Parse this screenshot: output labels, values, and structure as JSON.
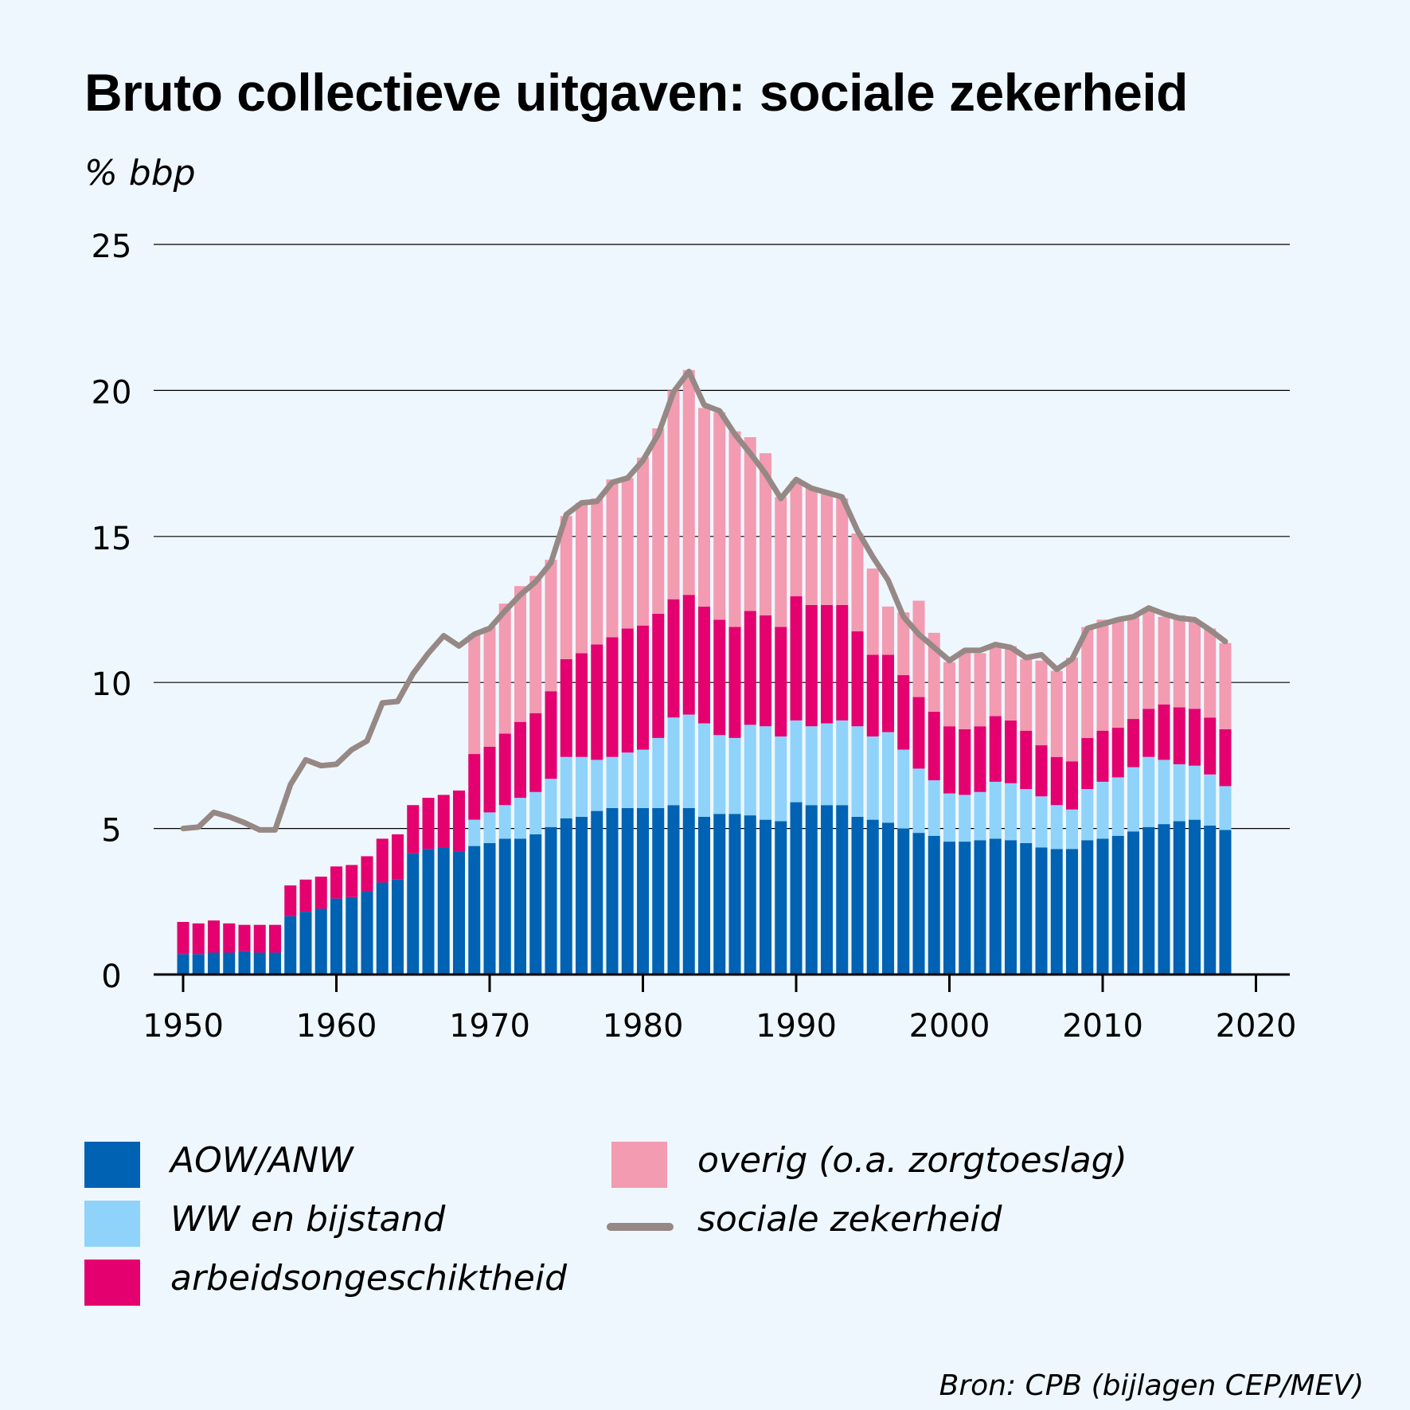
{
  "title": "Bruto collectieve uitgaven: sociale zekerheid",
  "unit_label": "% bbp",
  "source": "Bron: CPB (bijlagen CEP/MEV)",
  "colors": {
    "aow": "#0062b3",
    "ww": "#8fd3fa",
    "ao": "#e4006f",
    "overig": "#f29bb1",
    "line": "#968884",
    "grid": "#000000",
    "background": "#eef7fd"
  },
  "legend": [
    {
      "key": "aow",
      "label": "AOW/ANW",
      "kind": "box"
    },
    {
      "key": "ww",
      "label": "WW en bijstand",
      "kind": "box"
    },
    {
      "key": "ao",
      "label": "arbeidsongeschiktheid",
      "kind": "box"
    },
    {
      "key": "overig",
      "label": "overig (o.a. zorgtoeslag)",
      "kind": "box"
    },
    {
      "key": "line",
      "label": "sociale zekerheid",
      "kind": "line"
    }
  ],
  "chart_data": {
    "type": "bar",
    "stacked": true,
    "title": "Bruto collectieve uitgaven: sociale zekerheid",
    "ylabel": "% bbp",
    "xlabel": "",
    "ylim": [
      0,
      25
    ],
    "yticks": [
      "0",
      "5",
      "10",
      "15",
      "20",
      "25"
    ],
    "xticks": [
      "1950",
      "1960",
      "1970",
      "1980",
      "1990",
      "2000",
      "2010",
      "2020"
    ],
    "xlim": [
      1950,
      2020
    ],
    "grid": true,
    "x": [
      1950,
      1951,
      1952,
      1953,
      1954,
      1955,
      1956,
      1957,
      1958,
      1959,
      1960,
      1961,
      1962,
      1963,
      1964,
      1965,
      1966,
      1967,
      1968,
      1969,
      1970,
      1971,
      1972,
      1973,
      1974,
      1975,
      1976,
      1977,
      1978,
      1979,
      1980,
      1981,
      1982,
      1983,
      1984,
      1985,
      1986,
      1987,
      1988,
      1989,
      1990,
      1991,
      1992,
      1993,
      1994,
      1995,
      1996,
      1997,
      1998,
      1999,
      2000,
      2001,
      2002,
      2003,
      2004,
      2005,
      2006,
      2007,
      2008,
      2009,
      2010,
      2011,
      2012,
      2013,
      2014,
      2015,
      2016,
      2017,
      2018
    ],
    "series": [
      {
        "name": "AOW/ANW",
        "key": "aow",
        "values": [
          0.7,
          0.7,
          0.75,
          0.75,
          0.8,
          0.75,
          0.75,
          2.0,
          2.15,
          2.25,
          2.6,
          2.65,
          2.85,
          3.15,
          3.25,
          4.15,
          4.3,
          4.35,
          4.2,
          4.4,
          4.5,
          4.65,
          4.65,
          4.8,
          5.05,
          5.35,
          5.4,
          5.6,
          5.7,
          5.7,
          5.7,
          5.7,
          5.8,
          5.7,
          5.4,
          5.5,
          5.5,
          5.45,
          5.3,
          5.25,
          5.9,
          5.8,
          5.8,
          5.8,
          5.4,
          5.3,
          5.2,
          5.0,
          4.85,
          4.75,
          4.55,
          4.55,
          4.6,
          4.65,
          4.6,
          4.5,
          4.35,
          4.3,
          4.3,
          4.6,
          4.65,
          4.75,
          4.9,
          5.05,
          5.15,
          5.25,
          5.3,
          5.1,
          4.95
        ]
      },
      {
        "name": "WW en bijstand",
        "key": "ww",
        "values": [
          0,
          0,
          0,
          0,
          0,
          0,
          0,
          0,
          0,
          0,
          0,
          0,
          0,
          0,
          0,
          0,
          0,
          0,
          0,
          0.9,
          1.05,
          1.15,
          1.4,
          1.45,
          1.65,
          2.1,
          2.05,
          1.75,
          1.75,
          1.9,
          2.0,
          2.4,
          3.0,
          3.2,
          3.2,
          2.7,
          2.6,
          3.1,
          3.2,
          2.9,
          2.8,
          2.7,
          2.8,
          2.9,
          3.1,
          2.85,
          3.1,
          2.7,
          2.2,
          1.9,
          1.65,
          1.6,
          1.65,
          1.95,
          1.95,
          1.85,
          1.75,
          1.5,
          1.35,
          1.75,
          1.95,
          2.0,
          2.2,
          2.4,
          2.2,
          1.95,
          1.85,
          1.75,
          1.5
        ]
      },
      {
        "name": "arbeidsongeschiktheid",
        "key": "ao",
        "values": [
          1.1,
          1.05,
          1.1,
          1.0,
          0.9,
          0.95,
          0.95,
          1.05,
          1.1,
          1.1,
          1.1,
          1.1,
          1.2,
          1.5,
          1.55,
          1.65,
          1.75,
          1.8,
          2.1,
          2.25,
          2.25,
          2.45,
          2.6,
          2.7,
          3.0,
          3.35,
          3.55,
          3.95,
          4.1,
          4.25,
          4.25,
          4.25,
          4.05,
          4.1,
          4.0,
          3.95,
          3.8,
          3.9,
          3.8,
          3.75,
          4.25,
          4.15,
          4.05,
          3.95,
          3.25,
          2.8,
          2.65,
          2.55,
          2.45,
          2.35,
          2.3,
          2.25,
          2.25,
          2.25,
          2.15,
          2.0,
          1.75,
          1.65,
          1.65,
          1.75,
          1.75,
          1.7,
          1.65,
          1.65,
          1.9,
          1.95,
          1.95,
          1.95,
          1.95
        ]
      },
      {
        "name": "overig (o.a. zorgtoeslag)",
        "key": "overig",
        "values": [
          0,
          0,
          0,
          0,
          0,
          0,
          0,
          0,
          0,
          0,
          0,
          0,
          0,
          0,
          0,
          0,
          0,
          0,
          0,
          4.1,
          4.1,
          4.45,
          4.65,
          4.7,
          4.5,
          4.9,
          5.15,
          5.0,
          5.4,
          5.15,
          5.75,
          6.35,
          7.15,
          7.7,
          6.8,
          7.1,
          6.7,
          5.95,
          5.55,
          4.45,
          3.95,
          4.0,
          3.8,
          3.65,
          3.35,
          2.95,
          1.65,
          2.15,
          3.3,
          2.7,
          2.2,
          2.65,
          2.5,
          2.45,
          2.55,
          2.45,
          2.9,
          2.95,
          3.55,
          3.8,
          3.8,
          3.75,
          3.55,
          3.45,
          3.0,
          3.15,
          3.0,
          3.05,
          2.95
        ]
      },
      {
        "name": "sociale zekerheid",
        "key": "line",
        "type": "line",
        "values": [
          5.0,
          5.05,
          5.55,
          5.4,
          5.2,
          4.95,
          4.95,
          6.5,
          7.35,
          7.15,
          7.2,
          7.7,
          8.0,
          9.3,
          9.35,
          10.3,
          11.0,
          11.6,
          11.25,
          11.65,
          11.85,
          12.45,
          13.0,
          13.45,
          14.1,
          15.75,
          16.15,
          16.2,
          16.85,
          17.0,
          17.6,
          18.5,
          19.95,
          20.65,
          19.5,
          19.3,
          18.5,
          17.85,
          17.15,
          16.3,
          16.95,
          16.65,
          16.5,
          16.35,
          15.2,
          14.3,
          13.5,
          12.25,
          11.65,
          11.2,
          10.75,
          11.1,
          11.1,
          11.3,
          11.2,
          10.85,
          10.95,
          10.45,
          10.8,
          11.85,
          12.0,
          12.15,
          12.25,
          12.55,
          12.35,
          12.2,
          12.15,
          11.8,
          11.4
        ]
      }
    ]
  }
}
